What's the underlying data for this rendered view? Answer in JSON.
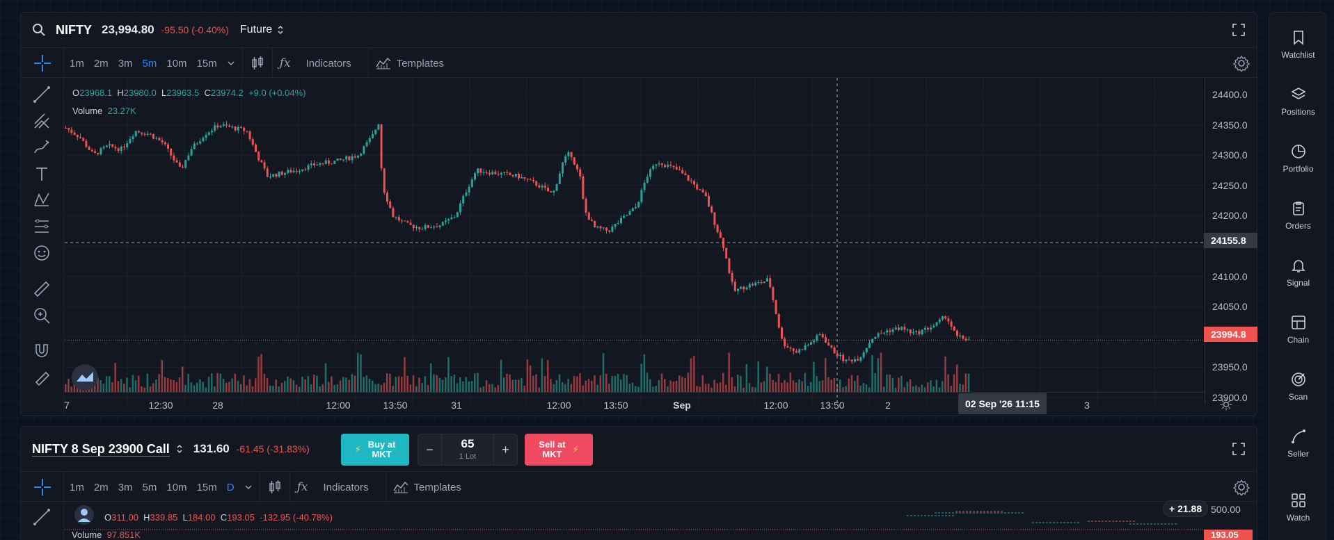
{
  "main_chart": {
    "symbol": "NIFTY",
    "price": "23,994.80",
    "change": "-95.50 (-0.40%)",
    "instrument_type": "Future",
    "timeframes": [
      "1m",
      "2m",
      "3m",
      "5m",
      "10m",
      "15m"
    ],
    "active_timeframe": "5m",
    "indicators_label": "Indicators",
    "templates_label": "Templates",
    "ohlc": {
      "o_label": "O",
      "o": "23968.1",
      "h_label": "H",
      "h": "23980.0",
      "l_label": "L",
      "l": "23963.5",
      "c_label": "C",
      "c": "23974.2",
      "chg": "+9.0 (+0.04%)"
    },
    "volume_label": "Volume",
    "volume": "23.27K",
    "y_ticks": [
      "24400.0",
      "24350.0",
      "24300.0",
      "24250.0",
      "24200.0",
      "24155.8",
      "24100.0",
      "24050.0",
      "23994.8",
      "23950.0",
      "23900.0"
    ],
    "crosshair_price": "24155.8",
    "last_price": "23994.8",
    "x_ticks": [
      "7",
      "12:30",
      "28",
      "12:00",
      "13:50",
      "31",
      "12:00",
      "13:50",
      "Sep",
      "12:00",
      "13:50",
      "2",
      "02 Sep '26   11:15",
      "13:50",
      "3"
    ],
    "crosshair_time": "02 Sep '26   11:15"
  },
  "option_chart": {
    "title": "NIFTY 8 Sep 23900 Call",
    "price": "131.60",
    "change": "-61.45 (-31.83%)",
    "buy_label_1": "Buy at",
    "buy_label_2": "MKT",
    "qty": "65",
    "lot_label": "1 Lot",
    "minus": "−",
    "plus": "+",
    "sell_label_1": "Sell at",
    "sell_label_2": "MKT",
    "timeframes": [
      "1m",
      "2m",
      "3m",
      "5m",
      "10m",
      "15m",
      "D"
    ],
    "active_timeframe": "D",
    "indicators_label": "Indicators",
    "templates_label": "Templates",
    "ohlc": {
      "o_label": "O",
      "o": "311.00",
      "h_label": "H",
      "h": "339.85",
      "l_label": "L",
      "l": "184.00",
      "c_label": "C",
      "c": "193.05",
      "chg": "-132.95 (-40.78%)"
    },
    "volume_label": "Volume",
    "volume": "97.851K",
    "badge": "21.88",
    "y_ticks": [
      "500.00",
      "193.05"
    ]
  },
  "sidebar": [
    {
      "label": "Watchlist",
      "icon": "bookmark-icon"
    },
    {
      "label": "Positions",
      "icon": "layers-icon"
    },
    {
      "label": "Portfolio",
      "icon": "pie-icon"
    },
    {
      "label": "Orders",
      "icon": "clipboard-icon"
    },
    {
      "label": "Signal",
      "icon": "bell-icon"
    },
    {
      "label": "Chain",
      "icon": "chain-icon"
    },
    {
      "label": "Scan",
      "icon": "scan-icon"
    },
    {
      "label": "Seller",
      "icon": "seller-icon"
    },
    {
      "label": "Watch",
      "icon": "grid-icon"
    }
  ],
  "colors": {
    "up": "#26a69a",
    "down": "#ef5350",
    "accent": "#2a8bf2"
  }
}
